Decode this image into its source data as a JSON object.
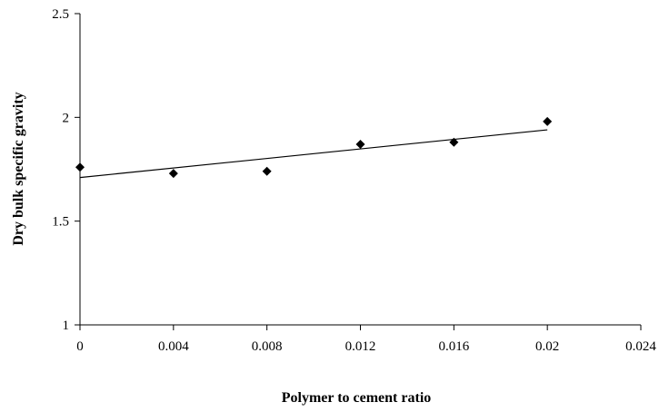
{
  "chart_data": {
    "type": "scatter",
    "title": "",
    "xlabel": "Polymer to cement ratio",
    "ylabel": "Dry bulk specific gravity",
    "xlim": [
      0,
      0.024
    ],
    "ylim": [
      1,
      2.5
    ],
    "x_ticks": [
      "0",
      "0.004",
      "0.008",
      "0.012",
      "0.016",
      "0.02",
      "0.024"
    ],
    "y_ticks": [
      "1",
      "1.5",
      "2",
      "2.5"
    ],
    "grid": false,
    "legend": "none",
    "marker": "diamond",
    "marker_color": "#000000",
    "series": [
      {
        "points": [
          {
            "x": 0.0,
            "y": 1.76
          },
          {
            "x": 0.004,
            "y": 1.73
          },
          {
            "x": 0.008,
            "y": 1.74
          },
          {
            "x": 0.012,
            "y": 1.87
          },
          {
            "x": 0.016,
            "y": 1.88
          },
          {
            "x": 0.02,
            "y": 1.98
          }
        ]
      }
    ],
    "trendline": {
      "type": "linear",
      "x_start": 0.0,
      "y_start": 1.71,
      "x_end": 0.02,
      "y_end": 1.94
    }
  }
}
